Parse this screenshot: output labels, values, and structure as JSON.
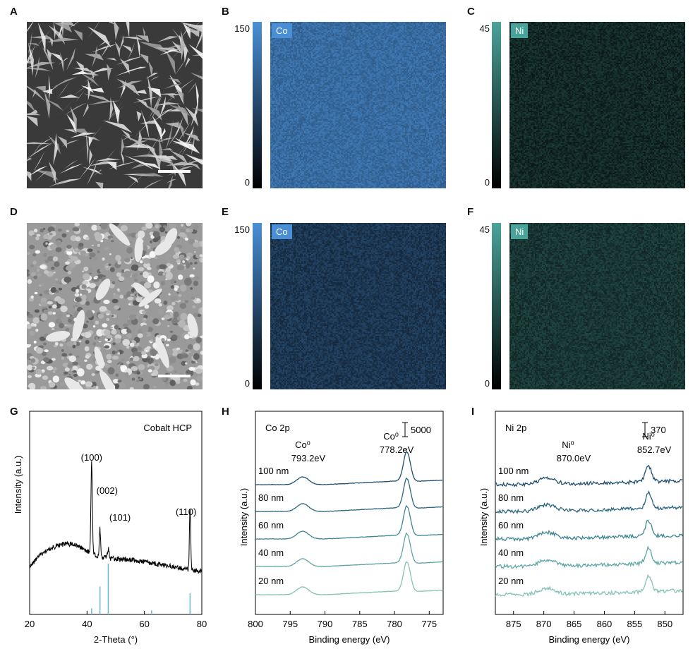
{
  "panels": {
    "A": "A",
    "B": "B",
    "C": "C",
    "D": "D",
    "E": "E",
    "F": "F",
    "G": "G",
    "H": "H",
    "I": "I"
  },
  "maps": {
    "co_top": {
      "tag": "Co",
      "max": "150",
      "min": "0",
      "color": "#4a8fd6",
      "level": 0.75
    },
    "ni_top": {
      "tag": "Ni",
      "max": "45",
      "min": "0",
      "color": "#4aa39a",
      "level": 0.25
    },
    "co_bot": {
      "tag": "Co",
      "max": "150",
      "min": "0",
      "color": "#4a8fd6",
      "level": 0.38
    },
    "ni_bot": {
      "tag": "Ni",
      "max": "45",
      "min": "0",
      "color": "#4aa39a",
      "level": 0.33
    }
  },
  "chart_data": [
    {
      "panel": "G",
      "type": "line",
      "title": "Cobalt HCP",
      "xlabel": "2-Theta (°)",
      "ylabel": "Intensity (a.u.)",
      "xlim": [
        20,
        80
      ],
      "xticks": [
        20,
        40,
        60,
        80
      ],
      "peaks": [
        {
          "label": "(100)",
          "x": 41.6
        },
        {
          "label": "(002)",
          "x": 44.5
        },
        {
          "label": "(101)",
          "x": 47.4
        },
        {
          "label": "(110)",
          "x": 75.9
        }
      ],
      "reference_lines": [
        {
          "x": 41.6,
          "rel": 0.12
        },
        {
          "x": 44.5,
          "rel": 0.55
        },
        {
          "x": 47.4,
          "rel": 1.0
        },
        {
          "x": 62.5,
          "rel": 0.08
        },
        {
          "x": 75.9,
          "rel": 0.42
        }
      ]
    },
    {
      "panel": "H",
      "type": "line",
      "title": "Co 2p",
      "xlabel": "Binding energy (eV)",
      "ylabel": "Intensity (a.u.)",
      "xlim": [
        800,
        773
      ],
      "xticks": [
        800,
        795,
        790,
        785,
        780,
        775
      ],
      "scale_label": "5000",
      "annotations": [
        {
          "name": "Co⁰",
          "value": "793.2eV",
          "x": 793.2
        },
        {
          "name": "Co⁰",
          "value": "778.2eV",
          "x": 778.2
        }
      ],
      "series": [
        {
          "name": "100 nm",
          "color": "#1f4e70"
        },
        {
          "name": "80 nm",
          "color": "#2c6680"
        },
        {
          "name": "60 nm",
          "color": "#3e8592"
        },
        {
          "name": "40 nm",
          "color": "#5ea6a6"
        },
        {
          "name": "20 nm",
          "color": "#84c2b6"
        }
      ]
    },
    {
      "panel": "I",
      "type": "line",
      "title": "Ni 2p",
      "xlabel": "Binding energy (eV)",
      "ylabel": "Intensity (a.u.)",
      "xlim": [
        878,
        847
      ],
      "xticks": [
        875,
        870,
        865,
        860,
        855,
        850
      ],
      "scale_label": "370",
      "annotations": [
        {
          "name": "Ni⁰",
          "value": "870.0eV",
          "x": 870.0
        },
        {
          "name": "Ni⁰",
          "value": "852.7eV",
          "x": 852.7
        }
      ],
      "series": [
        {
          "name": "100 nm",
          "color": "#1f4e70"
        },
        {
          "name": "80 nm",
          "color": "#2c6680"
        },
        {
          "name": "60 nm",
          "color": "#3e8592"
        },
        {
          "name": "40 nm",
          "color": "#5ea6a6"
        },
        {
          "name": "20 nm",
          "color": "#84c2b6"
        }
      ]
    }
  ]
}
